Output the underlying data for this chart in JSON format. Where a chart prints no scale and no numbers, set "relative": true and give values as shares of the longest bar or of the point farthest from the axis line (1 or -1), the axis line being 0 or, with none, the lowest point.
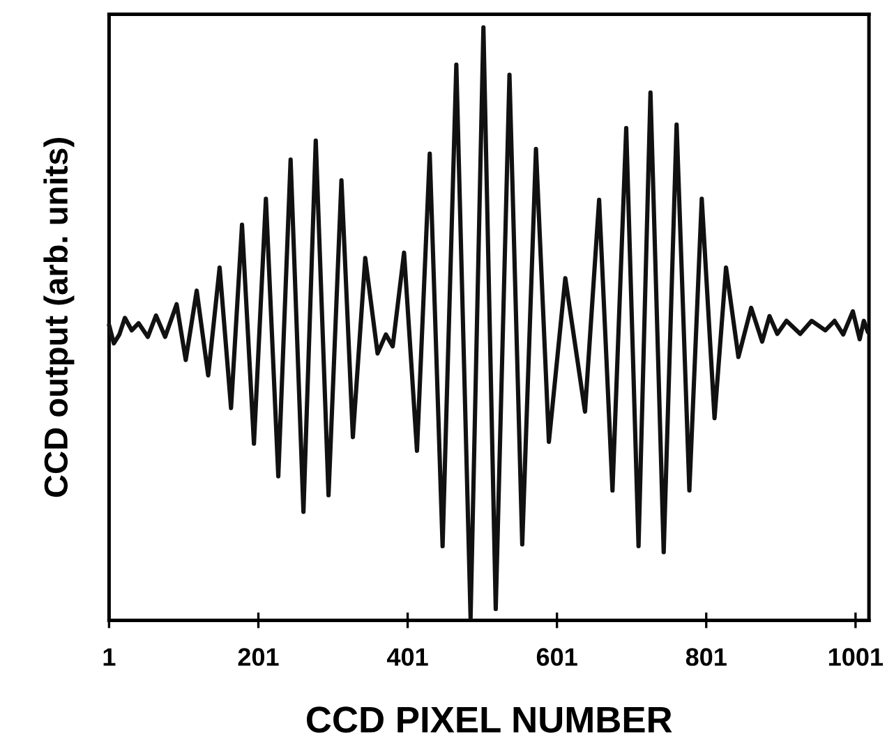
{
  "chart_data": {
    "type": "line",
    "relative": true,
    "xlabel": "CCD PIXEL NUMBER",
    "ylabel": "CCD output (arb. units)",
    "xlim": [
      1,
      1019
    ],
    "xticks": [
      1,
      201,
      401,
      601,
      801,
      1001
    ],
    "grid": false,
    "legend": false,
    "marker": "none",
    "line_style": "solid",
    "series": [
      {
        "color": "#111111",
        "x": [
          1,
          7.4,
          14.8,
          22.2,
          31.4,
          40.6,
          52.9,
          63.9,
          76.1,
          91.5,
          103.7,
          118.4,
          133.8,
          149.1,
          164.4,
          179.1,
          195.1,
          211.1,
          227.7,
          244.2,
          261.4,
          277.9,
          295.0,
          312.3,
          327.6,
          344.2,
          360.7,
          371.8,
          381.0,
          396.2,
          413.5,
          430.6,
          447.8,
          466.2,
          485.3,
          502.5,
          519.0,
          537.4,
          554.5,
          572.9,
          590.2,
          612.2,
          638.6,
          657.5,
          675.4,
          693.8,
          710.3,
          726.3,
          744.0,
          761.3,
          778.4,
          795.0,
          812.1,
          827.5,
          844.1,
          861.2,
          875.9,
          885.7,
          896.2,
          908.5,
          926.9,
          942.2,
          960.6,
          972.9,
          984.5,
          997.4,
          1006.6,
          1012.1,
          1017.6
        ],
        "values": [
          0.498,
          0.467,
          0.482,
          0.51,
          0.489,
          0.501,
          0.478,
          0.514,
          0.478,
          0.533,
          0.439,
          0.556,
          0.413,
          0.595,
          0.358,
          0.667,
          0.298,
          0.711,
          0.243,
          0.777,
          0.183,
          0.809,
          0.211,
          0.742,
          0.309,
          0.611,
          0.45,
          0.482,
          0.462,
          0.62,
          0.286,
          0.787,
          0.125,
          0.937,
          0.004,
          1.0,
          0.019,
          0.92,
          0.128,
          0.795,
          0.301,
          0.577,
          0.352,
          0.709,
          0.219,
          0.83,
          0.125,
          0.89,
          0.115,
          0.836,
          0.219,
          0.711,
          0.341,
          0.595,
          0.444,
          0.527,
          0.47,
          0.513,
          0.483,
          0.505,
          0.483,
          0.505,
          0.489,
          0.505,
          0.482,
          0.521,
          0.474,
          0.505,
          0.486
        ]
      }
    ]
  }
}
